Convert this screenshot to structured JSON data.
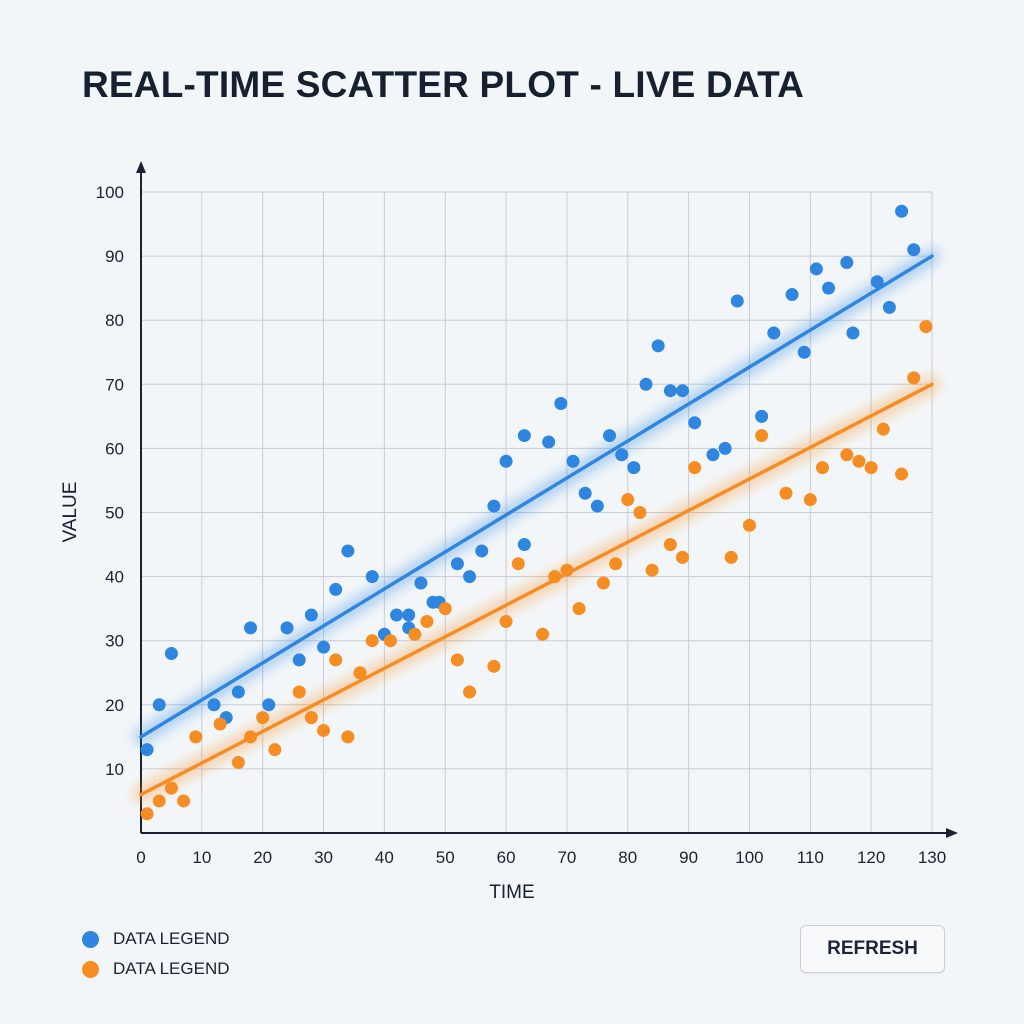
{
  "title": "REAL-TIME SCATTER PLOT - LIVE DATA",
  "refresh_label": "REFRESH",
  "colors": {
    "blue": "#2f86e0",
    "orange": "#f58d22"
  },
  "chart_data": {
    "type": "scatter",
    "title": "REAL-TIME SCATTER PLOT - LIVE DATA",
    "xlabel": "TIME",
    "ylabel": "VALUE",
    "xlim": [
      0,
      130
    ],
    "ylim": [
      0,
      100
    ],
    "xticks": [
      0,
      10,
      20,
      30,
      40,
      50,
      60,
      70,
      80,
      90,
      100,
      110,
      120,
      130
    ],
    "yticks": [
      10,
      20,
      30,
      40,
      50,
      60,
      70,
      80,
      90,
      100
    ],
    "grid": true,
    "legend": "bottom-left",
    "series": [
      {
        "name": "DATA LEGEND",
        "color": "#2f86e0",
        "trend": [
          [
            0,
            15
          ],
          [
            130,
            90
          ]
        ],
        "points": [
          [
            1,
            13
          ],
          [
            3,
            20
          ],
          [
            5,
            28
          ],
          [
            12,
            20
          ],
          [
            14,
            18
          ],
          [
            16,
            22
          ],
          [
            18,
            32
          ],
          [
            21,
            20
          ],
          [
            24,
            32
          ],
          [
            26,
            27
          ],
          [
            28,
            34
          ],
          [
            30,
            29
          ],
          [
            32,
            38
          ],
          [
            34,
            44
          ],
          [
            38,
            40
          ],
          [
            40,
            31
          ],
          [
            42,
            34
          ],
          [
            44,
            34
          ],
          [
            44,
            32
          ],
          [
            46,
            39
          ],
          [
            48,
            36
          ],
          [
            49,
            36
          ],
          [
            52,
            42
          ],
          [
            54,
            40
          ],
          [
            56,
            44
          ],
          [
            58,
            51
          ],
          [
            60,
            58
          ],
          [
            63,
            45
          ],
          [
            63,
            62
          ],
          [
            67,
            61
          ],
          [
            69,
            67
          ],
          [
            71,
            58
          ],
          [
            73,
            53
          ],
          [
            75,
            51
          ],
          [
            77,
            62
          ],
          [
            79,
            59
          ],
          [
            81,
            57
          ],
          [
            83,
            70
          ],
          [
            85,
            76
          ],
          [
            87,
            69
          ],
          [
            89,
            69
          ],
          [
            91,
            64
          ],
          [
            94,
            59
          ],
          [
            96,
            60
          ],
          [
            98,
            83
          ],
          [
            102,
            65
          ],
          [
            104,
            78
          ],
          [
            107,
            84
          ],
          [
            109,
            75
          ],
          [
            111,
            88
          ],
          [
            113,
            85
          ],
          [
            116,
            89
          ],
          [
            117,
            78
          ],
          [
            121,
            86
          ],
          [
            123,
            82
          ],
          [
            125,
            97
          ],
          [
            127,
            91
          ]
        ]
      },
      {
        "name": "DATA LEGEND",
        "color": "#f58d22",
        "trend": [
          [
            0,
            6
          ],
          [
            130,
            70
          ]
        ],
        "points": [
          [
            1,
            3
          ],
          [
            3,
            5
          ],
          [
            5,
            7
          ],
          [
            7,
            5
          ],
          [
            9,
            15
          ],
          [
            13,
            17
          ],
          [
            16,
            11
          ],
          [
            18,
            15
          ],
          [
            20,
            18
          ],
          [
            22,
            13
          ],
          [
            26,
            22
          ],
          [
            28,
            18
          ],
          [
            30,
            16
          ],
          [
            32,
            27
          ],
          [
            34,
            15
          ],
          [
            36,
            25
          ],
          [
            38,
            30
          ],
          [
            41,
            30
          ],
          [
            45,
            31
          ],
          [
            47,
            33
          ],
          [
            50,
            35
          ],
          [
            52,
            27
          ],
          [
            54,
            22
          ],
          [
            58,
            26
          ],
          [
            60,
            33
          ],
          [
            62,
            42
          ],
          [
            66,
            31
          ],
          [
            68,
            40
          ],
          [
            70,
            41
          ],
          [
            72,
            35
          ],
          [
            76,
            39
          ],
          [
            78,
            42
          ],
          [
            80,
            52
          ],
          [
            82,
            50
          ],
          [
            84,
            41
          ],
          [
            87,
            45
          ],
          [
            89,
            43
          ],
          [
            91,
            57
          ],
          [
            97,
            43
          ],
          [
            100,
            48
          ],
          [
            102,
            62
          ],
          [
            106,
            53
          ],
          [
            110,
            52
          ],
          [
            112,
            57
          ],
          [
            116,
            59
          ],
          [
            118,
            58
          ],
          [
            120,
            57
          ],
          [
            122,
            63
          ],
          [
            125,
            56
          ],
          [
            127,
            71
          ],
          [
            129,
            79
          ]
        ]
      }
    ]
  }
}
